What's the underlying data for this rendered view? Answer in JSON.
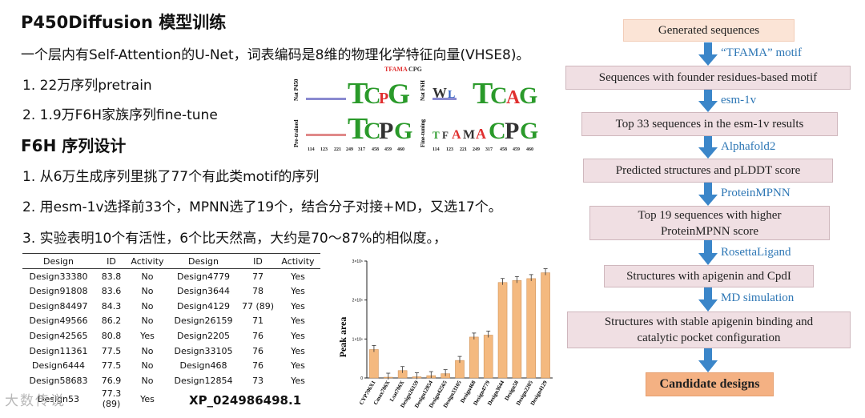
{
  "slide": {
    "title": "P450Diffusion 模型训练",
    "intro": "一个层内有Self-Attention的U-Net，词表编码是8维的物理化学特征向量(VHSE8)。",
    "pretrain_items": [
      "1.  22万序列pretrain",
      "2.  1.9万F6H家族序列fine-tune"
    ],
    "section2": "F6H 序列设计",
    "design_items": [
      "1.  从6万生成序列里挑了77个有此类motif的序列",
      "2.  用esm-1v选择前33个，MPNN选了19个，结合分子对接+MD，又选17个。",
      "3.  实验表明10个有活性，6个比天然高，大约是70～87%的相似度。，"
    ],
    "watermark": "大数传说",
    "accession": "XP_024986498.1"
  },
  "logos": {
    "header": [
      "TFAMA",
      "CPG"
    ],
    "header_colors": [
      "#e03030",
      "#333333"
    ],
    "row_labels": [
      "Nat P450",
      "Nat F6H",
      "Pre-trained",
      "Fine-tuning"
    ],
    "positions": [
      "114",
      "123",
      "221",
      "249",
      "317",
      "458",
      "459",
      "460"
    ],
    "motifs": [
      {
        "name": "nat-p450",
        "letters": [
          "T",
          "C",
          "P",
          "G"
        ]
      },
      {
        "name": "nat-f6h",
        "letters": [
          "W",
          "L",
          "T",
          "C",
          "A",
          "G"
        ]
      },
      {
        "name": "pre-trained",
        "letters": [
          "T",
          "C",
          "P",
          "G"
        ]
      },
      {
        "name": "fine-tuning",
        "letters": [
          "T",
          "F",
          "A",
          "M",
          "A",
          "C",
          "P",
          "G"
        ]
      }
    ]
  },
  "table": {
    "headers": [
      "Design",
      "ID",
      "Activity",
      "Design",
      "ID",
      "Activity"
    ],
    "rows": [
      [
        "Design33380",
        "83.8",
        "No",
        "Design4779",
        "77",
        "Yes"
      ],
      [
        "Design91808",
        "83.6",
        "No",
        "Design3644",
        "78",
        "Yes"
      ],
      [
        "Design84497",
        "84.3",
        "No",
        "Design4129",
        "77 (89)",
        "Yes"
      ],
      [
        "Design49566",
        "86.2",
        "No",
        "Design26159",
        "71",
        "Yes"
      ],
      [
        "Design42565",
        "80.8",
        "Yes",
        "Design2205",
        "76",
        "Yes"
      ],
      [
        "Design11361",
        "77.5",
        "No",
        "Design33105",
        "76",
        "Yes"
      ],
      [
        "Design6444",
        "77.5",
        "No",
        "Design468",
        "76",
        "Yes"
      ],
      [
        "Design58683",
        "76.9",
        "No",
        "Design12854",
        "73",
        "Yes"
      ],
      [
        "Design53",
        "77.3 (89)",
        "Yes",
        "",
        "",
        ""
      ]
    ]
  },
  "chart_data": {
    "type": "bar",
    "ylabel": "Peak area",
    "y_ticks": [
      "0",
      "1×10⁶",
      "2×10⁶",
      "3×10⁶"
    ],
    "ylim": [
      0,
      3000000
    ],
    "categories": [
      "CYP706X1",
      "Cmax706X",
      "Lsat706X",
      "Design26159",
      "Design12854",
      "Design42565",
      "Design33105",
      "Design468",
      "Design4779",
      "Design3644",
      "Design58",
      "Design2205",
      "Design4129"
    ],
    "values": [
      730000,
      20000,
      190000,
      30000,
      60000,
      110000,
      450000,
      1050000,
      1100000,
      2450000,
      2500000,
      2550000,
      2700000
    ],
    "bar_color": "#f4b97f"
  },
  "flow": {
    "boxes": [
      "Generated sequences",
      "Sequences with founder residues-based motif",
      "Top 33 sequences in the esm-1v results",
      "Predicted structures and pLDDT score",
      "Top 19 sequences with higher ProteinMPNN score",
      "Structures with apigenin and CpdI",
      "Structures with stable apigenin binding and catalytic pocket configuration",
      "Candidate designs"
    ],
    "arrows": [
      "“TFAMA” motif",
      "esm-1v",
      "Alphafold2",
      "ProteinMPNN",
      "RosettaLigand",
      "MD simulation"
    ],
    "arrow_color": "#3b86c9"
  }
}
